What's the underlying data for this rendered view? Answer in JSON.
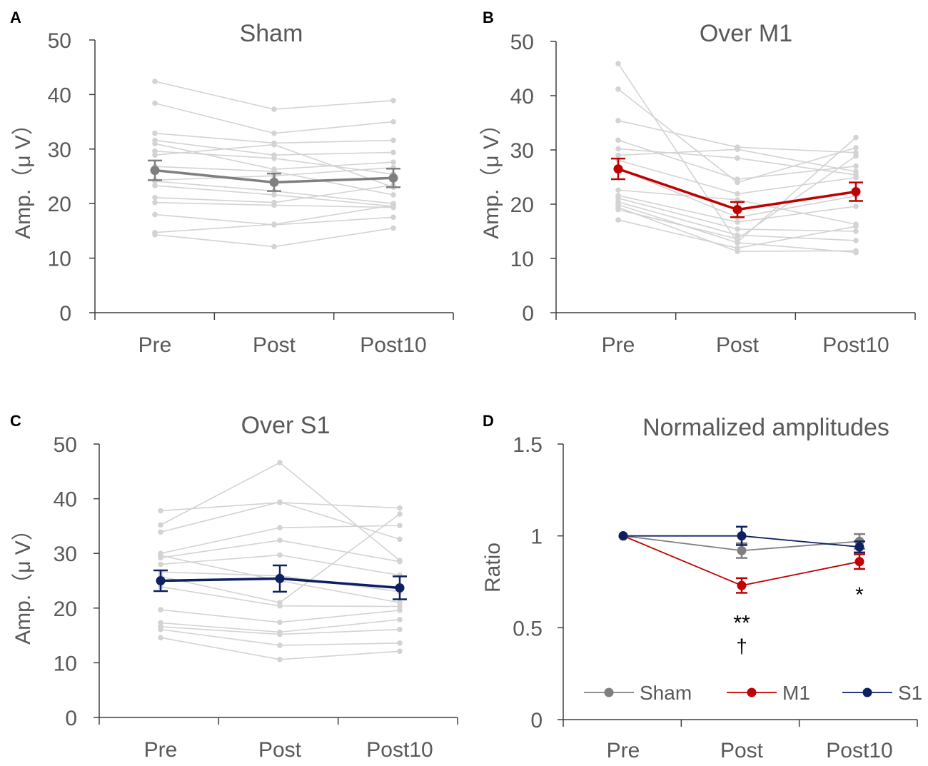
{
  "chart_data": [
    {
      "panel": "A",
      "type": "line",
      "title": "Sham",
      "ylabel": "Amp.（μ V）",
      "xlabel": "",
      "categories": [
        "Pre",
        "Post",
        "Post10"
      ],
      "ylim": [
        0,
        50
      ],
      "yticks": [
        "0",
        "10",
        "20",
        "30",
        "40",
        "50"
      ],
      "mean_color": "#7f7f7f",
      "individual_color": "#d3d3d3",
      "mean": {
        "values": [
          26.1,
          23.9,
          24.7
        ],
        "errors": [
          1.8,
          1.6,
          1.7
        ]
      },
      "individuals": [
        [
          42.4,
          37.3,
          38.9
        ],
        [
          38.4,
          32.9,
          35.0
        ],
        [
          32.9,
          31.1,
          31.6
        ],
        [
          31.6,
          28.9,
          29.4
        ],
        [
          31.0,
          26.3,
          27.6
        ],
        [
          29.6,
          28.3,
          25.4
        ],
        [
          28.9,
          30.8,
          23.0
        ],
        [
          26.8,
          25.9,
          21.6
        ],
        [
          24.3,
          25.1,
          26.6
        ],
        [
          24.1,
          22.3,
          20.0
        ],
        [
          23.3,
          21.6,
          19.5
        ],
        [
          21.1,
          20.2,
          23.4
        ],
        [
          20.2,
          19.7,
          19.3
        ],
        [
          18.0,
          16.1,
          17.5
        ],
        [
          14.7,
          16.2,
          19.7
        ],
        [
          14.3,
          12.1,
          15.5
        ]
      ]
    },
    {
      "panel": "B",
      "type": "line",
      "title": "Over M1",
      "ylabel": "Amp.（μ V）",
      "xlabel": "",
      "categories": [
        "Pre",
        "Post",
        "Post10"
      ],
      "ylim": [
        0,
        50
      ],
      "yticks": [
        "0",
        "10",
        "20",
        "30",
        "40",
        "50"
      ],
      "mean_color": "#c00000",
      "individual_color": "#d3d3d3",
      "mean": {
        "values": [
          26.5,
          19.0,
          22.3
        ],
        "errors": [
          1.9,
          1.4,
          1.7
        ]
      },
      "individuals": [
        [
          45.9,
          13.0,
          32.3
        ],
        [
          41.2,
          24.0,
          30.4
        ],
        [
          35.4,
          30.5,
          29.5
        ],
        [
          31.8,
          24.6,
          27.0
        ],
        [
          30.2,
          28.5,
          25.4
        ],
        [
          29.0,
          30.1,
          26.0
        ],
        [
          28.1,
          21.9,
          24.9
        ],
        [
          26.5,
          17.6,
          21.5
        ],
        [
          22.6,
          20.8,
          16.3
        ],
        [
          21.6,
          16.7,
          19.6
        ],
        [
          21.1,
          15.4,
          15.0
        ],
        [
          20.4,
          14.3,
          13.3
        ],
        [
          19.9,
          12.9,
          11.1
        ],
        [
          19.4,
          11.3,
          11.4
        ],
        [
          17.1,
          11.9,
          15.9
        ],
        [
          19.0,
          13.6,
          28.9
        ]
      ]
    },
    {
      "panel": "C",
      "type": "line",
      "title": "Over S1",
      "ylabel": "Amp.（μ V）",
      "xlabel": "",
      "categories": [
        "Pre",
        "Post",
        "Post10"
      ],
      "ylim": [
        0,
        50
      ],
      "yticks": [
        "0",
        "10",
        "20",
        "30",
        "40",
        "50"
      ],
      "mean_color": "#0d2060",
      "individual_color": "#d3d3d3",
      "mean": {
        "values": [
          25.0,
          25.4,
          23.7
        ],
        "errors": [
          1.9,
          2.4,
          2.1
        ]
      },
      "individuals": [
        [
          37.8,
          39.3,
          38.3
        ],
        [
          35.2,
          46.6,
          28.7
        ],
        [
          33.9,
          39.4,
          32.6
        ],
        [
          30.0,
          34.7,
          35.1
        ],
        [
          29.2,
          32.4,
          28.5
        ],
        [
          28.0,
          29.7,
          26.0
        ],
        [
          26.6,
          25.9,
          23.0
        ],
        [
          25.8,
          21.0,
          37.2
        ],
        [
          23.9,
          20.4,
          20.3
        ],
        [
          19.7,
          17.4,
          19.6
        ],
        [
          17.3,
          15.6,
          17.9
        ],
        [
          16.6,
          15.2,
          16.1
        ],
        [
          16.1,
          13.2,
          13.6
        ],
        [
          14.6,
          10.6,
          12.1
        ],
        [
          29.6,
          25.0,
          21.0
        ]
      ]
    },
    {
      "panel": "D",
      "type": "line",
      "title": "Normalized amplitudes",
      "ylabel": "Ratio",
      "xlabel": "",
      "categories": [
        "Pre",
        "Post",
        "Post10"
      ],
      "ylim": [
        0,
        1.5
      ],
      "yticks": [
        "0",
        "0.5",
        "1",
        "1.5"
      ],
      "series": [
        {
          "name": "Sham",
          "color": "#7f7f7f",
          "values": [
            1.0,
            0.92,
            0.97
          ],
          "errors": [
            0,
            0.04,
            0.04
          ]
        },
        {
          "name": "M1",
          "color": "#c00000",
          "values": [
            1.0,
            0.73,
            0.86
          ],
          "errors": [
            0,
            0.04,
            0.04
          ]
        },
        {
          "name": "S1",
          "color": "#0d2060",
          "values": [
            1.0,
            1.0,
            0.94
          ],
          "errors": [
            0,
            0.05,
            0.03
          ]
        }
      ],
      "annotations": [
        {
          "text": "**",
          "category": "Post",
          "below": "M1"
        },
        {
          "text": "†",
          "category": "Post",
          "below": "M1"
        },
        {
          "text": "*",
          "category": "Post10",
          "below": "M1"
        }
      ],
      "legend_position": "bottom"
    }
  ],
  "panel_letters": [
    "A",
    "B",
    "C",
    "D"
  ]
}
